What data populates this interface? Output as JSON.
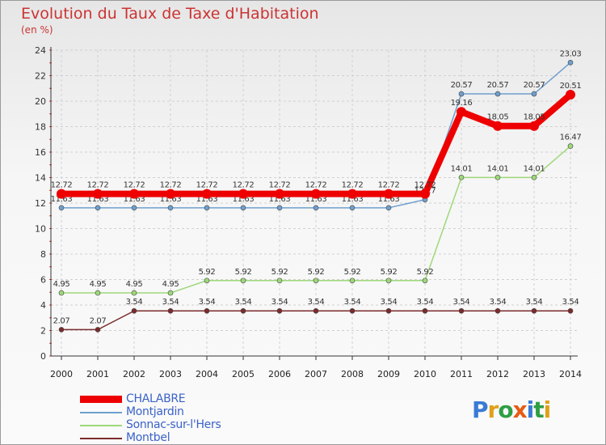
{
  "header": {
    "title": "Evolution du Taux de Taxe d'Habitation",
    "unit": "(en %)"
  },
  "chart_data": {
    "type": "line",
    "title": "Evolution du Taux de Taxe d'Habitation",
    "ylabel": "(en %)",
    "xlabel": "",
    "ylim": [
      0,
      24
    ],
    "yticks": [
      "0",
      "2",
      "4",
      "6",
      "8",
      "10",
      "12",
      "14",
      "16",
      "18",
      "20",
      "22",
      "24"
    ],
    "categories": [
      "2000",
      "2001",
      "2002",
      "2003",
      "2004",
      "2005",
      "2006",
      "2007",
      "2008",
      "2009",
      "2010",
      "2011",
      "2012",
      "2013",
      "2014"
    ],
    "series": [
      {
        "name": "CHALABRE",
        "color": "#ee0000",
        "values": [
          12.72,
          12.72,
          12.72,
          12.72,
          12.72,
          12.72,
          12.72,
          12.72,
          12.72,
          12.72,
          12.72,
          19.16,
          18.05,
          18.05,
          20.51
        ],
        "labels": [
          "12.72",
          "12.72",
          "12.72",
          "12.72",
          "12.72",
          "12.72",
          "12.72",
          "12.72",
          "12.72",
          "12.72",
          "12.72",
          "19.16",
          "18.05",
          "18.05",
          "20.51"
        ]
      },
      {
        "name": "Montjardin",
        "color": "#6f9fce",
        "values": [
          11.63,
          11.63,
          11.63,
          11.63,
          11.63,
          11.63,
          11.63,
          11.63,
          11.63,
          11.63,
          12.27,
          20.57,
          20.57,
          20.57,
          23.03
        ],
        "labels": [
          "11.63",
          "11.63",
          "11.63",
          "11.63",
          "11.63",
          "11.63",
          "11.63",
          "11.63",
          "11.63",
          "11.63",
          "12.27",
          "20.57",
          "20.57",
          "20.57",
          "23.03"
        ]
      },
      {
        "name": "Sonnac-sur-l'Hers",
        "color": "#9ed87a",
        "values": [
          4.95,
          4.95,
          4.95,
          4.95,
          5.92,
          5.92,
          5.92,
          5.92,
          5.92,
          5.92,
          5.92,
          14.01,
          14.01,
          14.01,
          16.47
        ],
        "labels": [
          "4.95",
          "4.95",
          "4.95",
          "4.95",
          "5.92",
          "5.92",
          "5.92",
          "5.92",
          "5.92",
          "5.92",
          "5.92",
          "14.01",
          "14.01",
          "14.01",
          "16.47"
        ]
      },
      {
        "name": "Montbel",
        "color": "#7b2b2b",
        "values": [
          2.07,
          2.07,
          3.54,
          3.54,
          3.54,
          3.54,
          3.54,
          3.54,
          3.54,
          3.54,
          3.54,
          3.54,
          3.54,
          3.54,
          3.54
        ],
        "labels": [
          "2.07",
          "2.07",
          "3.54",
          "3.54",
          "3.54",
          "3.54",
          "3.54",
          "3.54",
          "3.54",
          "3.54",
          "3.54",
          "3.54",
          "3.54",
          "3.54",
          "3.54"
        ]
      }
    ]
  },
  "legend": {
    "items": [
      "CHALABRE",
      "Montjardin",
      "Sonnac-sur-l'Hers",
      "Montbel"
    ]
  },
  "logo": {
    "text": "Proxiti"
  }
}
